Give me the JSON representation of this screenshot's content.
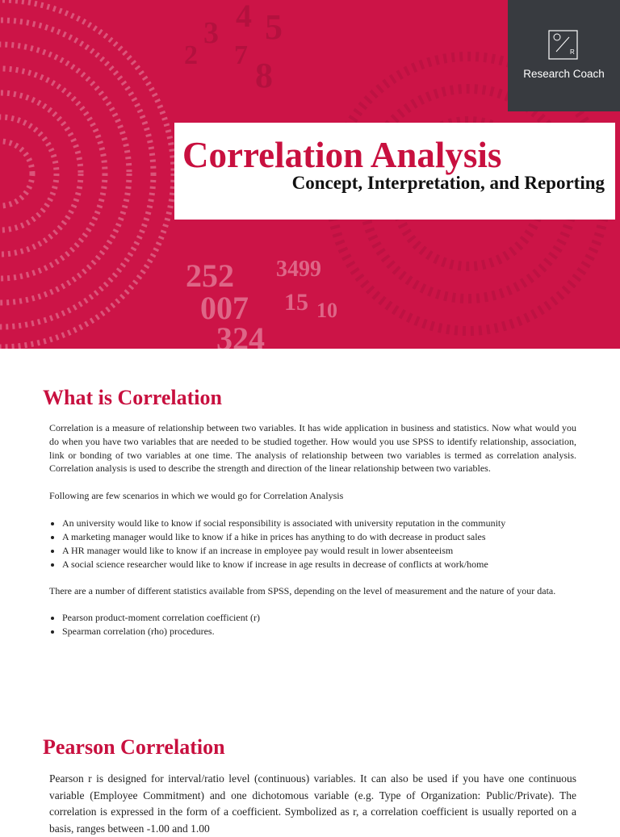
{
  "header": {
    "brand": "Research Coach",
    "logo_mark": "R",
    "title": "Correlation Analysis",
    "subtitle": "Concept, Interpretation, and Reporting",
    "decor_numbers": [
      "252",
      "3499",
      "007",
      "15",
      "10",
      "324",
      "2",
      "3",
      "4",
      "5",
      "7",
      "8"
    ]
  },
  "section1": {
    "heading": "What is Correlation",
    "paragraph": "Correlation is a measure of relationship between two variables. It has wide application in business and statistics. Now what would you do when you have two variables that are needed to be studied together. How would you use SPSS to identify relationship, association, link or bonding of two variables at one time. The analysis of relationship between two variables is termed as correlation analysis.   Correlation analysis is used to describe the strength and direction of the linear relationship between two variables.",
    "intro": "Following are few scenarios in which we would go for Correlation Analysis",
    "scenarios": [
      "An university would like to know if social responsibility is associated with university reputation in the community",
      "A marketing manager would like to know if a hike in prices has anything to do with decrease in product sales",
      "A HR manager would like to know if an increase in employee pay would result in lower absenteeism",
      "A social science researcher would like to know if increase in age results in decrease of conflicts at work/home"
    ],
    "statistics_intro": "There are a number of different statistics available from SPSS, depending on the level of measurement and the nature of your data.",
    "statistics": [
      "Pearson product-moment correlation coefficient (r)",
      "Spearman correlation (rho) procedures."
    ]
  },
  "section2": {
    "heading": "Pearson Correlation",
    "paragraph": "Pearson r is designed for interval/ratio level (continuous) variables. It can also be used if you have one continuous variable (Employee Commitment) and one dichotomous variable (e.g. Type of Organization: Public/Private). The correlation is expressed in the form of a coefficient. Symbolized as r, a correlation coefficient is usually reported on a basis, ranges between -1.00 and 1.00"
  }
}
